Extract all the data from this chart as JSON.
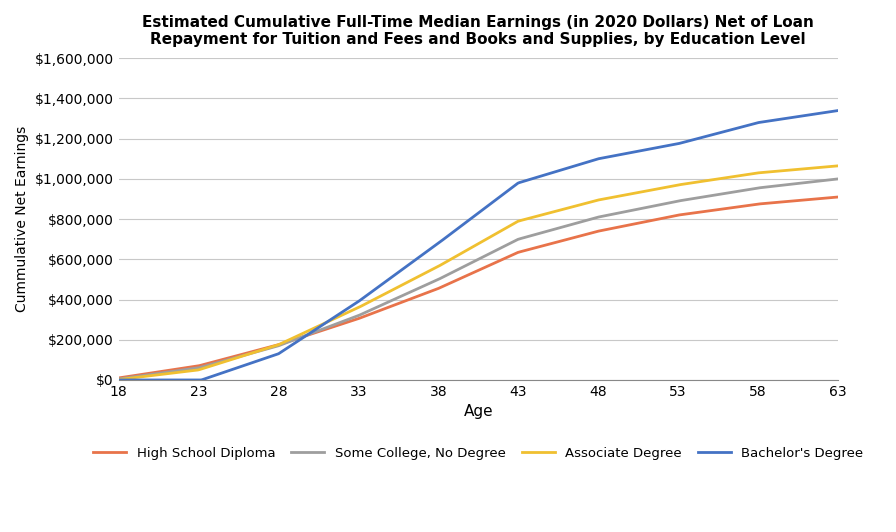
{
  "title": "Estimated Cumulative Full-Time Median Earnings (in 2020 Dollars) Net of Loan\nRepayment for Tuition and Fees and Books and Supplies, by Education Level",
  "xlabel": "Age",
  "ylabel": "Cummulative Net Earnings",
  "colors": {
    "high_school": "#E8734A",
    "some_college": "#9E9E9E",
    "associate": "#F0C030",
    "bachelors": "#4472C4"
  },
  "legend_labels": [
    "High School Diploma",
    "Some College, No Degree",
    "Associate Degree",
    "Bachelor's Degree"
  ],
  "ylim": [
    0,
    1600000
  ],
  "yticks": [
    0,
    200000,
    400000,
    600000,
    800000,
    1000000,
    1200000,
    1400000,
    1600000
  ],
  "xticks": [
    18,
    23,
    28,
    33,
    38,
    43,
    48,
    53,
    58,
    63
  ],
  "background_color": "#ffffff",
  "grid_color": "#C8C8C8",
  "hs_ctrl_ages": [
    18,
    23,
    28,
    33,
    38,
    43,
    48,
    53,
    58,
    63
  ],
  "hs_ctrl_vals": [
    10000,
    70000,
    175000,
    305000,
    455000,
    635000,
    740000,
    820000,
    875000,
    910000
  ],
  "sc_ctrl_ages": [
    18,
    23,
    28,
    33,
    38,
    43,
    48,
    53,
    58,
    63
  ],
  "sc_ctrl_vals": [
    5000,
    60000,
    170000,
    320000,
    500000,
    700000,
    810000,
    890000,
    955000,
    1000000
  ],
  "as_ctrl_ages": [
    18,
    23,
    28,
    33,
    38,
    43,
    48,
    53,
    58,
    63
  ],
  "as_ctrl_vals": [
    2000,
    50000,
    175000,
    360000,
    565000,
    790000,
    895000,
    970000,
    1030000,
    1065000
  ],
  "ba_ctrl_ages": [
    18,
    20,
    23,
    28,
    33,
    38,
    43,
    48,
    53,
    58,
    63
  ],
  "ba_ctrl_vals": [
    -5000,
    -20000,
    -5000,
    130000,
    390000,
    680000,
    980000,
    1100000,
    1175000,
    1280000,
    1340000
  ]
}
